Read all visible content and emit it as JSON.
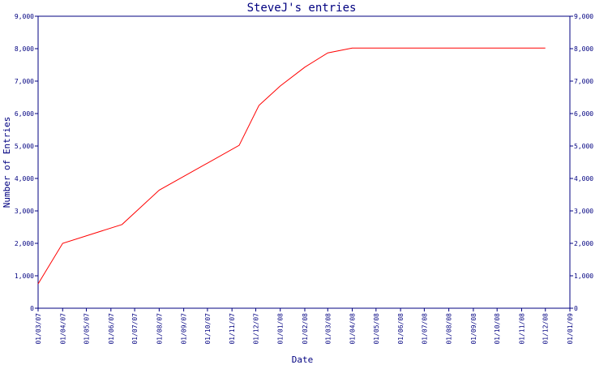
{
  "chart_data": {
    "type": "line",
    "title": "SteveJ's entries",
    "xlabel": "Date",
    "ylabel": "Number of Entries",
    "ylim": [
      0,
      9000
    ],
    "y_ticks": [
      "0",
      "1,000",
      "2,000",
      "3,000",
      "4,000",
      "5,000",
      "6,000",
      "7,000",
      "8,000",
      "9,000"
    ],
    "x_ticks": [
      "01/03/07",
      "01/04/07",
      "01/05/07",
      "01/06/07",
      "01/07/07",
      "01/08/07",
      "01/09/07",
      "01/10/07",
      "01/11/07",
      "01/12/07",
      "01/01/08",
      "01/02/08",
      "01/03/08",
      "01/04/08",
      "01/05/08",
      "01/06/08",
      "01/07/08",
      "01/08/08",
      "01/09/08",
      "01/10/08",
      "01/11/08",
      "01/12/08",
      "01/01/09"
    ],
    "grid": false,
    "line_color": "#ff0000",
    "axis_color": "#000080",
    "series": [
      {
        "x": [
          "01/03/07",
          "01/04/07",
          "15/06/07",
          "01/08/07",
          "10/11/07",
          "05/12/07",
          "01/01/08",
          "01/02/08",
          "01/03/08",
          "01/04/08",
          "01/05/08",
          "01/06/08",
          "01/07/08",
          "01/08/08",
          "01/09/08",
          "01/10/08",
          "01/11/08",
          "01/12/08"
        ],
        "values": [
          750,
          2000,
          2580,
          3640,
          5020,
          6250,
          6850,
          7430,
          7870,
          8020,
          8020,
          8020,
          8020,
          8020,
          8020,
          8020,
          8020,
          8020
        ]
      }
    ]
  }
}
